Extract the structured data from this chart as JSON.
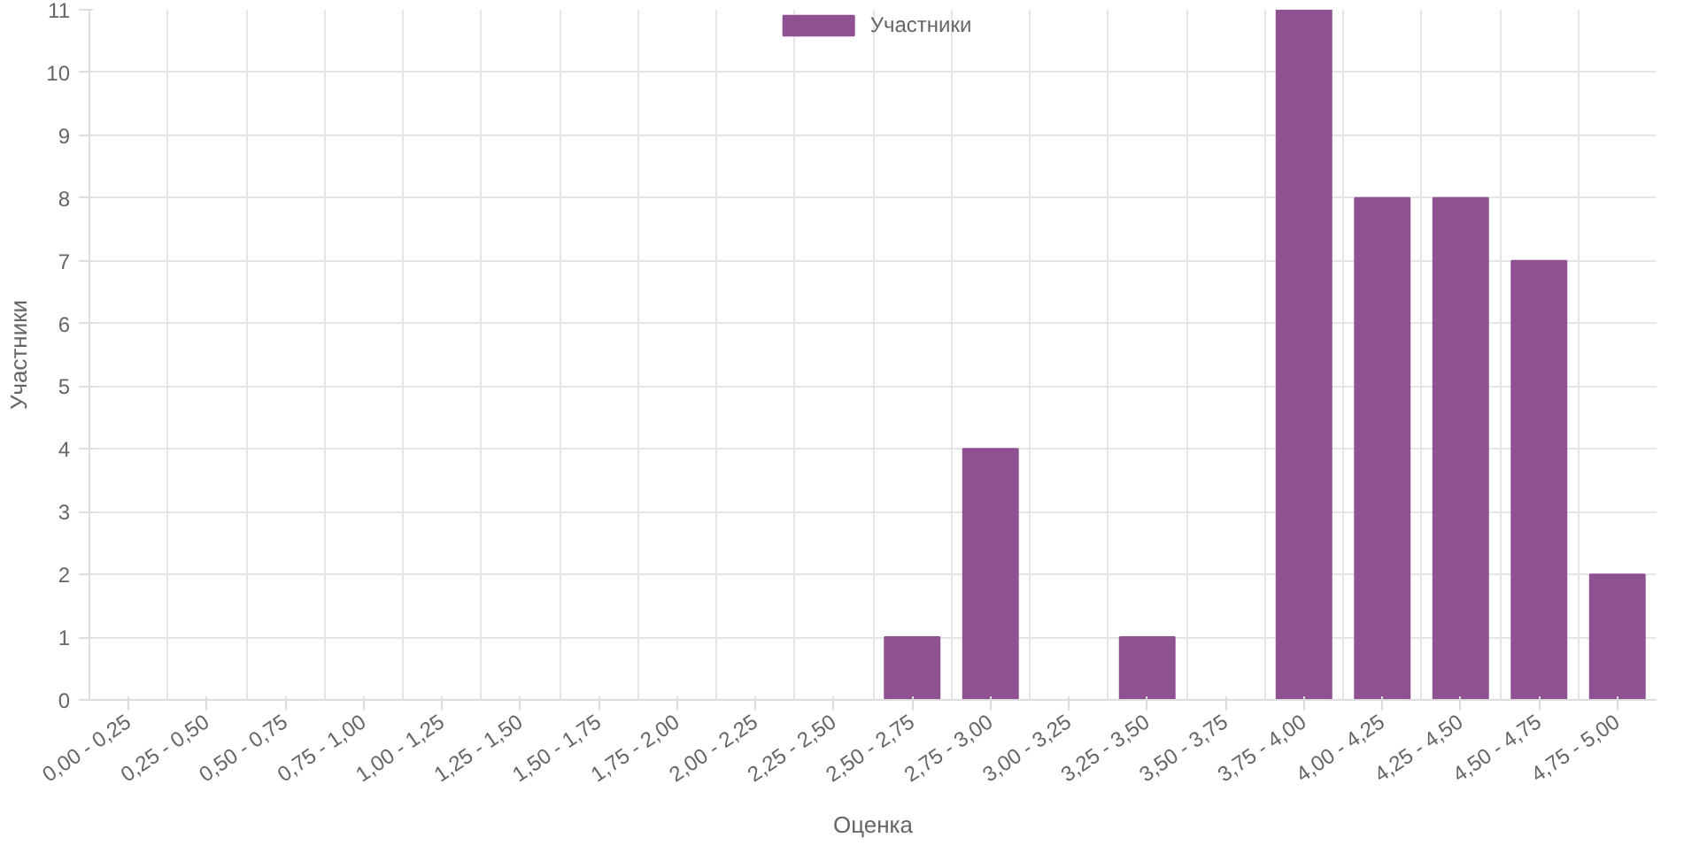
{
  "chart_data": {
    "type": "bar",
    "xlabel": "Оценка",
    "ylabel": "Участники",
    "categories": [
      "0,00 - 0,25",
      "0,25 - 0,50",
      "0,50 - 0,75",
      "0,75 - 1,00",
      "1,00 - 1,25",
      "1,25 - 1,50",
      "1,50 - 1,75",
      "1,75 - 2,00",
      "2,00 - 2,25",
      "2,25 - 2,50",
      "2,50 - 2,75",
      "2,75 - 3,00",
      "3,00 - 3,25",
      "3,25 - 3,50",
      "3,50 - 3,75",
      "3,75 - 4,00",
      "4,00 - 4,25",
      "4,25 - 4,50",
      "4,50 - 4,75",
      "4,75 - 5,00"
    ],
    "series": [
      {
        "name": "Участники",
        "color": "#8e5192",
        "values": [
          0,
          0,
          0,
          0,
          0,
          0,
          0,
          0,
          0,
          0,
          1,
          4,
          0,
          1,
          0,
          11,
          8,
          8,
          7,
          2
        ]
      }
    ],
    "ylim": [
      0,
      11
    ],
    "yticks": [
      0,
      1,
      2,
      3,
      4,
      5,
      6,
      7,
      8,
      9,
      10,
      11
    ],
    "grid": true,
    "legend": "top"
  }
}
